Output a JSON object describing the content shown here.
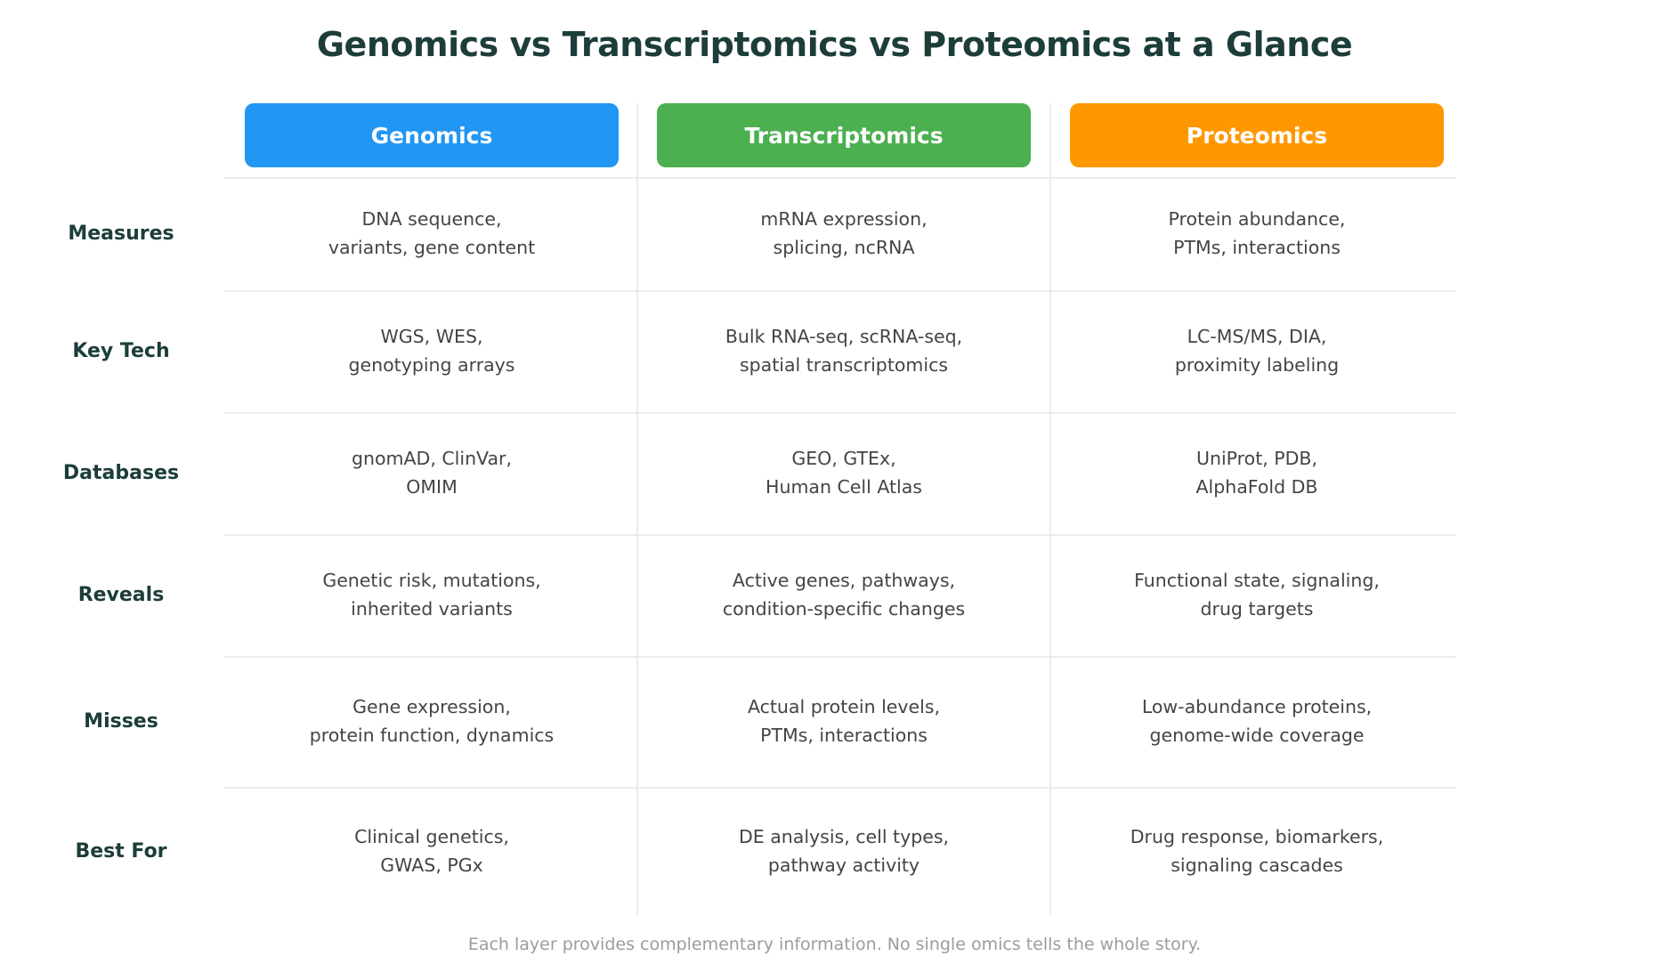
{
  "title": "Genomics vs Transcriptomics vs Proteomics at a Glance",
  "columns": [
    {
      "label": "Genomics",
      "color": "#2196f3"
    },
    {
      "label": "Transcriptomics",
      "color": "#4caf50"
    },
    {
      "label": "Proteomics",
      "color": "#ff9800"
    }
  ],
  "rows": [
    {
      "label": "Measures",
      "cells": [
        [
          "DNA sequence,",
          "variants, gene content"
        ],
        [
          "mRNA expression,",
          "splicing, ncRNA"
        ],
        [
          "Protein abundance,",
          "PTMs, interactions"
        ]
      ]
    },
    {
      "label": "Key Tech",
      "cells": [
        [
          "WGS, WES,",
          "genotyping arrays"
        ],
        [
          "Bulk RNA-seq, scRNA-seq,",
          "spatial transcriptomics"
        ],
        [
          "LC-MS/MS, DIA,",
          "proximity labeling"
        ]
      ]
    },
    {
      "label": "Databases",
      "cells": [
        [
          "gnomAD, ClinVar,",
          "OMIM"
        ],
        [
          "GEO, GTEx,",
          "Human Cell Atlas"
        ],
        [
          "UniProt, PDB,",
          "AlphaFold DB"
        ]
      ]
    },
    {
      "label": "Reveals",
      "cells": [
        [
          "Genetic risk, mutations,",
          "inherited variants"
        ],
        [
          "Active genes, pathways,",
          "condition-specific changes"
        ],
        [
          "Functional state, signaling,",
          "drug targets"
        ]
      ]
    },
    {
      "label": "Misses",
      "cells": [
        [
          "Gene expression,",
          "protein function, dynamics"
        ],
        [
          "Actual protein levels,",
          "PTMs, interactions"
        ],
        [
          "Low-abundance proteins,",
          "genome-wide coverage"
        ]
      ]
    },
    {
      "label": "Best For",
      "cells": [
        [
          "Clinical genetics,",
          "GWAS, PGx"
        ],
        [
          "DE analysis, cell types,",
          "pathway activity"
        ],
        [
          "Drug response, biomarkers,",
          "signaling cascades"
        ]
      ]
    }
  ],
  "footer": "Each layer provides complementary information. No single omics tells the whole story."
}
